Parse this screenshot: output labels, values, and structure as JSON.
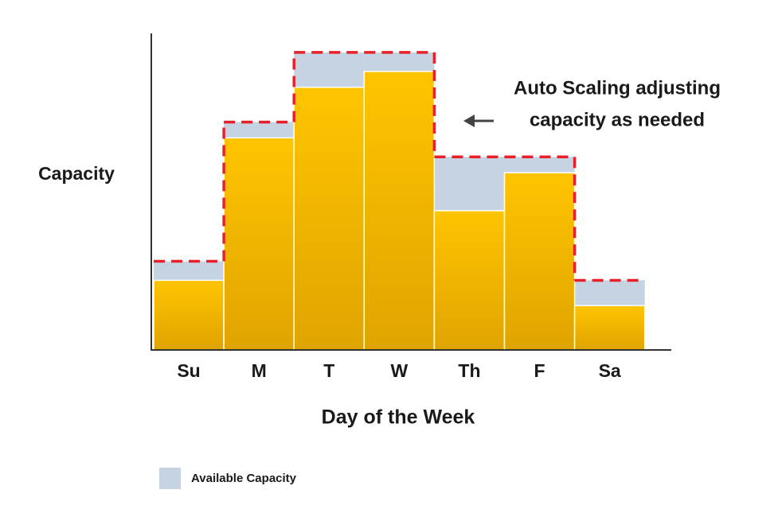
{
  "chart_data": {
    "type": "bar",
    "x_label": "Day of the Week",
    "y_label": "Capacity",
    "annotation": [
      "Auto Scaling adjusting",
      "capacity as needed"
    ],
    "categories": [
      "Su",
      "M",
      "T",
      "W",
      "Th",
      "F",
      "Sa"
    ],
    "ylim": [
      0,
      100
    ],
    "line_color": "#e8202a",
    "series": [
      {
        "color": "#f5b800",
        "values": [
          22,
          67,
          83,
          88,
          44,
          56,
          14
        ]
      },
      {
        "name": "Available Capacity",
        "color": "#c5d3e3",
        "values": [
          28,
          72,
          94,
          94,
          61,
          61,
          22
        ]
      }
    ]
  }
}
